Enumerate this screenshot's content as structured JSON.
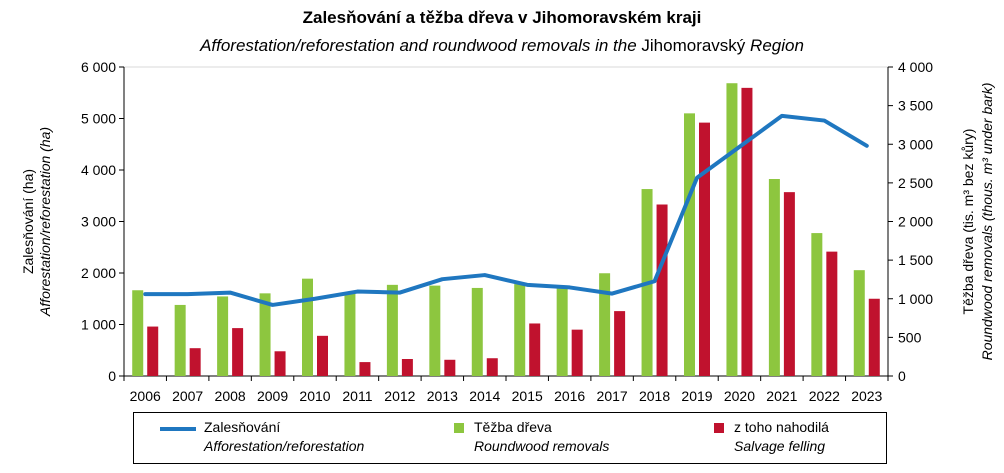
{
  "chart_data": {
    "type": "bar",
    "title": "Zalesňování  a těžba dřeva v Jihomoravském kraji",
    "subtitle_italic_1": "Afforestation/reforestation and roundwood removals in the",
    "subtitle_plain": "Jihomoravský",
    "subtitle_italic_2": "Region",
    "categories": [
      "2006",
      "2007",
      "2008",
      "2009",
      "2010",
      "2011",
      "2012",
      "2013",
      "2014",
      "2015",
      "2016",
      "2017",
      "2018",
      "2019",
      "2020",
      "2021",
      "2022",
      "2023"
    ],
    "left_axis": {
      "label_cz": "Zalesňování  (ha)",
      "label_en": "Afforestation/reforestation (ha)",
      "range": [
        0,
        6000
      ],
      "ticks": [
        0,
        1000,
        2000,
        3000,
        4000,
        5000,
        6000
      ],
      "tick_labels": [
        "0",
        "1 000",
        "2 000",
        "3 000",
        "4 000",
        "5 000",
        "6 000"
      ]
    },
    "right_axis": {
      "label_cz": "Těžba dřeva (tis. m³ bez kůry)",
      "label_en": "Roundwood removals (thous. m³ under bark)",
      "range": [
        0,
        4000
      ],
      "ticks": [
        0,
        500,
        1000,
        1500,
        2000,
        2500,
        3000,
        3500,
        4000
      ],
      "tick_labels": [
        "0",
        "500",
        "1 000",
        "1 500",
        "2 000",
        "2 500",
        "3 000",
        "3 500",
        "4 000"
      ]
    },
    "series": [
      {
        "name": "Zalesňování",
        "name_en": "Afforestation/reforestation",
        "type": "line",
        "axis": "left",
        "color": "#1f77c0",
        "values": [
          1590,
          1590,
          1620,
          1380,
          1500,
          1640,
          1620,
          1880,
          1960,
          1770,
          1720,
          1600,
          1840,
          3850,
          4450,
          5050,
          4960,
          4470
        ]
      },
      {
        "name": "Těžba dřeva",
        "name_en": "Roundwood removals",
        "type": "bar",
        "axis": "right",
        "color": "#8dc63f",
        "values": [
          1110,
          920,
          1030,
          1070,
          1260,
          1080,
          1180,
          1170,
          1140,
          1190,
          1140,
          1330,
          2420,
          3400,
          3790,
          2550,
          1850,
          1370
        ]
      },
      {
        "name": "z toho nahodilá",
        "name_en": "Salvage felling",
        "type": "bar",
        "axis": "right",
        "color": "#c0122e",
        "values": [
          640,
          360,
          620,
          320,
          520,
          180,
          220,
          210,
          230,
          680,
          600,
          840,
          2220,
          3280,
          3730,
          2380,
          1610,
          1000
        ]
      }
    ]
  }
}
